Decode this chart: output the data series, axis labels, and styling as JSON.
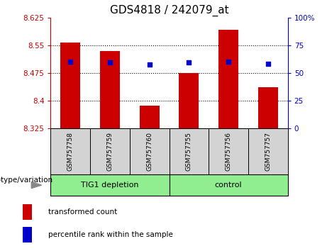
{
  "title": "GDS4818 / 242079_at",
  "samples": [
    "GSM757758",
    "GSM757759",
    "GSM757760",
    "GSM757755",
    "GSM757756",
    "GSM757757"
  ],
  "bar_values": [
    8.557,
    8.535,
    8.385,
    8.475,
    8.592,
    8.435
  ],
  "blue_marker_values": [
    8.505,
    8.503,
    8.497,
    8.503,
    8.505,
    8.5
  ],
  "y_min": 8.325,
  "y_max": 8.625,
  "y_ticks_left": [
    8.325,
    8.4,
    8.475,
    8.55,
    8.625
  ],
  "y_ticks_right": [
    0,
    25,
    50,
    75,
    100
  ],
  "bar_color": "#cc0000",
  "marker_color": "#0000cc",
  "group1_label": "TIG1 depletion",
  "group2_label": "control",
  "group_bg_color": "#90ee90",
  "sample_bg_color": "#d3d3d3",
  "legend_bar_label": "transformed count",
  "legend_marker_label": "percentile rank within the sample",
  "genotype_label": "genotype/variation",
  "right_axis_color": "#0000cc",
  "left_axis_color": "#cc0000",
  "title_fontsize": 11,
  "tick_fontsize": 7.5,
  "sample_fontsize": 6.5,
  "group_fontsize": 8,
  "legend_fontsize": 7.5,
  "geno_fontsize": 7.5
}
